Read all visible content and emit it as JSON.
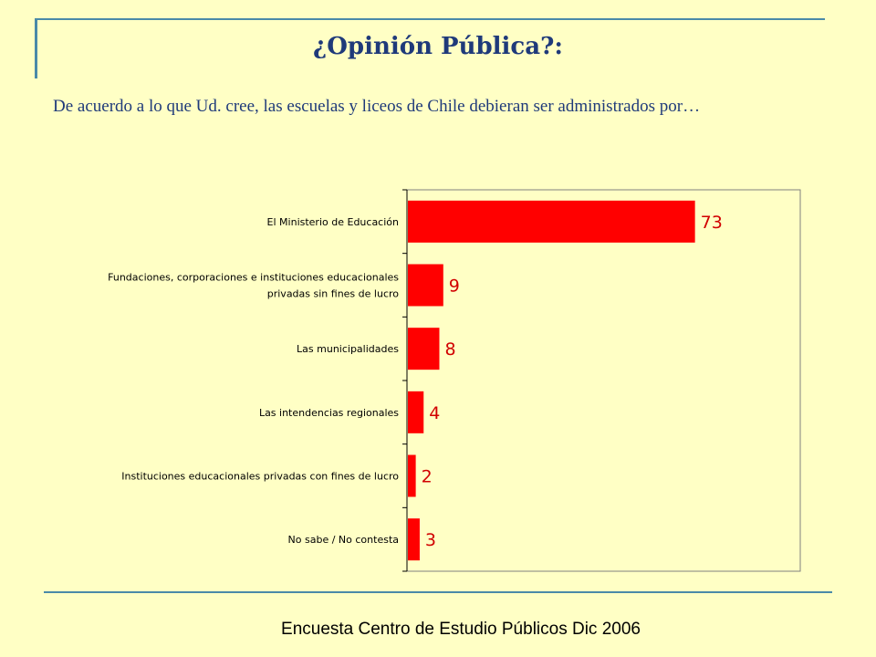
{
  "slide": {
    "title": "¿Opinión Pública?:",
    "subtitle": "De acuerdo a lo que Ud. cree, las escuelas y liceos de Chile debieran ser administrados por…",
    "footer": "Encuesta Centro de Estudio Públicos Dic 2006"
  },
  "chart_data": {
    "type": "bar",
    "orientation": "horizontal",
    "categories": [
      [
        "El Ministerio de Educación"
      ],
      [
        "Fundaciones, corporaciones e instituciones educacionales",
        "privadas sin fines de lucro"
      ],
      [
        "Las municipalidades"
      ],
      [
        "Las intendencias regionales"
      ],
      [
        "Instituciones educacionales privadas con fines de lucro"
      ],
      [
        "No sabe / No contesta"
      ]
    ],
    "values": [
      73,
      9,
      8,
      4,
      2,
      3
    ],
    "xlim": [
      0,
      100
    ],
    "grid": false,
    "bar_color": "#ff0000",
    "label_color": "#d10000"
  }
}
